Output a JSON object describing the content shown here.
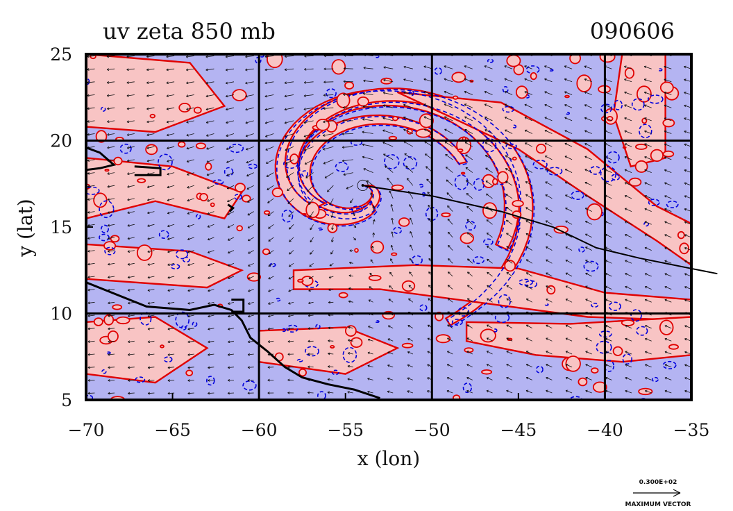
{
  "chart_data": {
    "type": "contour",
    "title": "uv zeta 850 mb",
    "date_label": "090606",
    "xlabel": "x (lon)",
    "ylabel": "y (lat)",
    "xlim": [
      -70,
      -35
    ],
    "ylim": [
      5,
      25
    ],
    "x_ticks": [
      -70,
      -65,
      -60,
      -55,
      -50,
      -45,
      -40,
      -35
    ],
    "y_ticks": [
      5,
      10,
      15,
      20,
      25
    ],
    "x_tick_labels": [
      "−70",
      "−65",
      "−60",
      "−55",
      "−50",
      "−45",
      "−40",
      "−35"
    ],
    "y_tick_labels": [
      "5",
      "10",
      "15",
      "20",
      "25"
    ],
    "grid_x": [
      -60,
      -50,
      -40
    ],
    "grid_y": [
      10,
      20
    ],
    "storm_symbol": "☉",
    "storm_center": [
      -54,
      17.4
    ],
    "track": [
      [
        -54,
        17.4
      ],
      [
        -50,
        16.8
      ],
      [
        -46,
        15.9
      ],
      [
        -43,
        15.0
      ],
      [
        -40.5,
        13.8
      ],
      [
        -38,
        13.2
      ],
      [
        -35,
        12.6
      ],
      [
        -33.5,
        12.3
      ]
    ],
    "fill_colors": {
      "positive": "#f8c4c4",
      "negative": "#b4b4f2",
      "outline_positive": "#e00000",
      "outline_negative": "#0000dd"
    },
    "vector_legend": {
      "value": "0.300E+02",
      "label": "MAXIMUM VECTOR"
    }
  }
}
